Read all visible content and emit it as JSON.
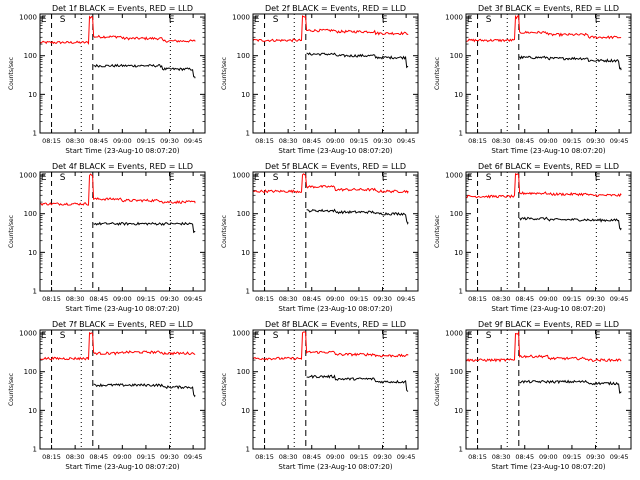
{
  "colors": {
    "events": "#000000",
    "lld": "#ff0000",
    "axes": "#000000",
    "background": "#ffffff"
  },
  "chart_data": [
    {
      "type": "line",
      "title": "Det 1f BLACK = Events, RED = LLD",
      "xlabel": "Start Time (23-Aug-10 08:07:20)",
      "ylabel": "Counts/sec",
      "xticks": [
        "08:15",
        "08:30",
        "08:45",
        "09:00",
        "09:15",
        "09:30",
        "09:45"
      ],
      "yticks": [
        "1",
        "10",
        "100",
        "1000"
      ],
      "yscale": "log",
      "ylim": [
        1,
        1200
      ],
      "markers": [
        "E",
        "S",
        "E"
      ],
      "series": [
        {
          "color": "red",
          "spike": true,
          "levels": [
            220,
            220,
            1000,
            310,
            280,
            240,
            190
          ]
        },
        {
          "color": "black",
          "levels": [
            null,
            null,
            null,
            55,
            55,
            45,
            40
          ]
        }
      ]
    },
    {
      "type": "line",
      "title": "Det 2f BLACK = Events, RED = LLD",
      "xlabel": "Start Time (23-Aug-10 08:07:20)",
      "ylabel": "Counts/sec",
      "xticks": [
        "08:15",
        "08:30",
        "08:45",
        "09:00",
        "09:15",
        "09:30",
        "09:45"
      ],
      "yticks": [
        "1",
        "10",
        "100",
        "1000"
      ],
      "yscale": "log",
      "ylim": [
        1,
        1200
      ],
      "markers": [
        "E",
        "S",
        "E"
      ],
      "series": [
        {
          "color": "red",
          "spike": true,
          "levels": [
            250,
            250,
            1000,
            450,
            420,
            380,
            300
          ]
        },
        {
          "color": "black",
          "levels": [
            null,
            null,
            null,
            110,
            100,
            90,
            80
          ]
        }
      ]
    },
    {
      "type": "line",
      "title": "Det 3f BLACK = Events, RED = LLD",
      "xlabel": "Start Time (23-Aug-10 08:07:20)",
      "ylabel": "Counts/sec",
      "xticks": [
        "08:15",
        "08:30",
        "08:45",
        "09:00",
        "09:15",
        "09:30",
        "09:45"
      ],
      "yticks": [
        "1",
        "10",
        "100",
        "1000"
      ],
      "yscale": "log",
      "ylim": [
        1,
        1200
      ],
      "markers": [
        "E",
        "S",
        "E"
      ],
      "series": [
        {
          "color": "red",
          "spike": true,
          "levels": [
            250,
            250,
            1000,
            400,
            350,
            300,
            230
          ]
        },
        {
          "color": "black",
          "levels": [
            null,
            null,
            null,
            90,
            85,
            75,
            65
          ]
        }
      ]
    },
    {
      "type": "line",
      "title": "Det 4f BLACK = Events, RED = LLD",
      "xlabel": "Start Time (23-Aug-10 08:07:20)",
      "ylabel": "Counts/sec",
      "xticks": [
        "08:15",
        "08:30",
        "08:45",
        "09:00",
        "09:15",
        "09:30",
        "09:45"
      ],
      "yticks": [
        "1",
        "10",
        "100",
        "1000"
      ],
      "yscale": "log",
      "ylim": [
        1,
        1200
      ],
      "markers": [
        "E",
        "S",
        "E"
      ],
      "series": [
        {
          "color": "red",
          "spike": true,
          "levels": [
            180,
            180,
            1000,
            240,
            220,
            200,
            170
          ]
        },
        {
          "color": "black",
          "levels": [
            null,
            null,
            null,
            55,
            55,
            55,
            50
          ]
        }
      ]
    },
    {
      "type": "line",
      "title": "Det 5f BLACK = Events, RED = LLD",
      "xlabel": "Start Time (23-Aug-10 08:07:20)",
      "ylabel": "Counts/sec",
      "xticks": [
        "08:15",
        "08:30",
        "08:45",
        "09:00",
        "09:15",
        "09:30",
        "09:45"
      ],
      "yticks": [
        "1",
        "10",
        "100",
        "1000"
      ],
      "yscale": "log",
      "ylim": [
        1,
        1200
      ],
      "markers": [
        "E",
        "S",
        "E"
      ],
      "series": [
        {
          "color": "red",
          "spike": true,
          "levels": [
            380,
            380,
            1000,
            500,
            420,
            380,
            320
          ]
        },
        {
          "color": "black",
          "levels": [
            null,
            null,
            null,
            120,
            110,
            100,
            95
          ]
        }
      ]
    },
    {
      "type": "line",
      "title": "Det 6f BLACK = Events, RED = LLD",
      "xlabel": "Start Time (23-Aug-10 08:07:20)",
      "ylabel": "Counts/sec",
      "xticks": [
        "08:15",
        "08:30",
        "08:45",
        "09:00",
        "09:15",
        "09:30",
        "09:45"
      ],
      "yticks": [
        "1",
        "10",
        "100",
        "1000"
      ],
      "yscale": "log",
      "ylim": [
        1,
        1200
      ],
      "markers": [
        "E",
        "S",
        "E"
      ],
      "series": [
        {
          "color": "red",
          "spike": true,
          "levels": [
            280,
            280,
            1000,
            340,
            320,
            300,
            280
          ]
        },
        {
          "color": "black",
          "levels": [
            null,
            null,
            null,
            75,
            70,
            68,
            65
          ]
        }
      ]
    },
    {
      "type": "line",
      "title": "Det 7f BLACK = Events, RED = LLD",
      "xlabel": "Start Time (23-Aug-10 08:07:20)",
      "ylabel": "Counts/sec",
      "xticks": [
        "08:15",
        "08:30",
        "08:45",
        "09:00",
        "09:15",
        "09:30",
        "09:45"
      ],
      "yticks": [
        "1",
        "10",
        "100",
        "1000"
      ],
      "yscale": "log",
      "ylim": [
        1,
        1200
      ],
      "markers": [
        "E",
        "S",
        "E"
      ],
      "series": [
        {
          "color": "red",
          "spike": true,
          "levels": [
            220,
            220,
            1000,
            300,
            320,
            300,
            280
          ]
        },
        {
          "color": "black",
          "levels": [
            null,
            null,
            null,
            45,
            45,
            40,
            38
          ]
        }
      ]
    },
    {
      "type": "line",
      "title": "Det 8f BLACK = Events, RED = LLD",
      "xlabel": "Start Time (23-Aug-10 08:07:20)",
      "ylabel": "Counts/sec",
      "xticks": [
        "08:15",
        "08:30",
        "08:45",
        "09:00",
        "09:15",
        "09:30",
        "09:45"
      ],
      "yticks": [
        "1",
        "10",
        "100",
        "1000"
      ],
      "yscale": "log",
      "ylim": [
        1,
        1200
      ],
      "markers": [
        "E",
        "S",
        "E"
      ],
      "series": [
        {
          "color": "red",
          "spike": true,
          "levels": [
            220,
            220,
            1000,
            320,
            280,
            260,
            250
          ]
        },
        {
          "color": "black",
          "levels": [
            null,
            null,
            null,
            75,
            65,
            55,
            50
          ]
        }
      ]
    },
    {
      "type": "line",
      "title": "Det 9f BLACK = Events, RED = LLD",
      "xlabel": "Start Time (23-Aug-10 08:07:20)",
      "ylabel": "Counts/sec",
      "xticks": [
        "08:15",
        "08:30",
        "08:45",
        "09:00",
        "09:15",
        "09:30",
        "09:45"
      ],
      "yticks": [
        "1",
        "10",
        "100",
        "1000"
      ],
      "yscale": "log",
      "ylim": [
        1,
        1200
      ],
      "markers": [
        "E",
        "S",
        "E"
      ],
      "series": [
        {
          "color": "red",
          "spike": true,
          "levels": [
            200,
            200,
            1000,
            250,
            220,
            200,
            190
          ]
        },
        {
          "color": "black",
          "levels": [
            null,
            null,
            null,
            55,
            55,
            50,
            45
          ]
        }
      ]
    }
  ]
}
